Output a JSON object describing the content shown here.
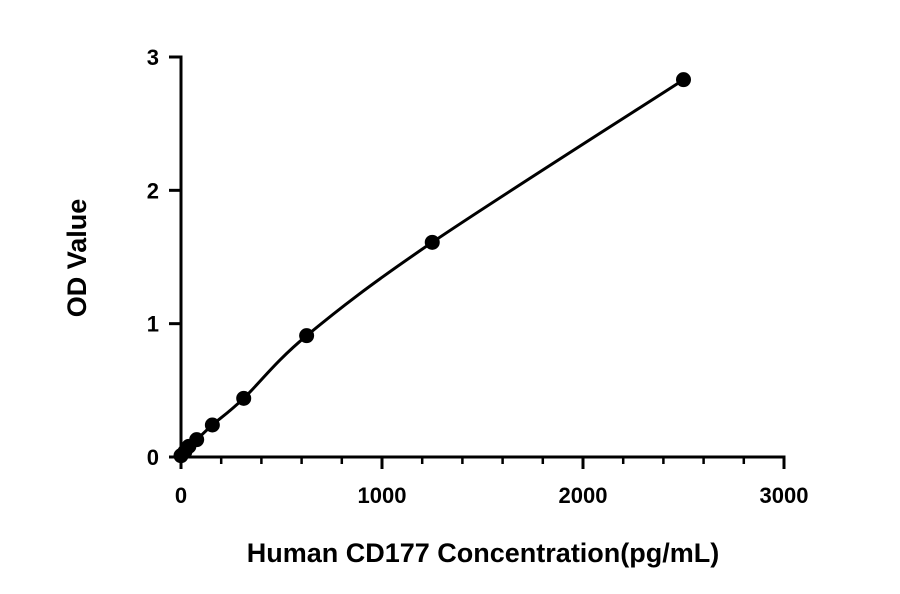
{
  "chart_data": {
    "type": "scatter",
    "title": "",
    "xlabel": "Human CD177 Concentration(pg/mL)",
    "ylabel": "OD Value",
    "xlim": [
      0,
      3000
    ],
    "ylim": [
      0,
      3
    ],
    "x_ticks": [
      0,
      1000,
      2000,
      3000
    ],
    "y_ticks": [
      0,
      1,
      2,
      3
    ],
    "x_tick_labels": [
      "0",
      "1000",
      "2000",
      "3000"
    ],
    "y_tick_labels": [
      "0",
      "1",
      "2",
      "3"
    ],
    "grid": false,
    "legend": "none",
    "fit_curve": true,
    "series": [
      {
        "x": [
          0,
          19.5,
          39,
          78,
          156,
          312,
          625,
          1250,
          2500
        ],
        "y": [
          0.01,
          0.04,
          0.08,
          0.13,
          0.24,
          0.44,
          0.91,
          1.61,
          2.83
        ]
      }
    ],
    "colors": {
      "marker": "#000000",
      "line": "#000000",
      "axis": "#000000"
    }
  }
}
